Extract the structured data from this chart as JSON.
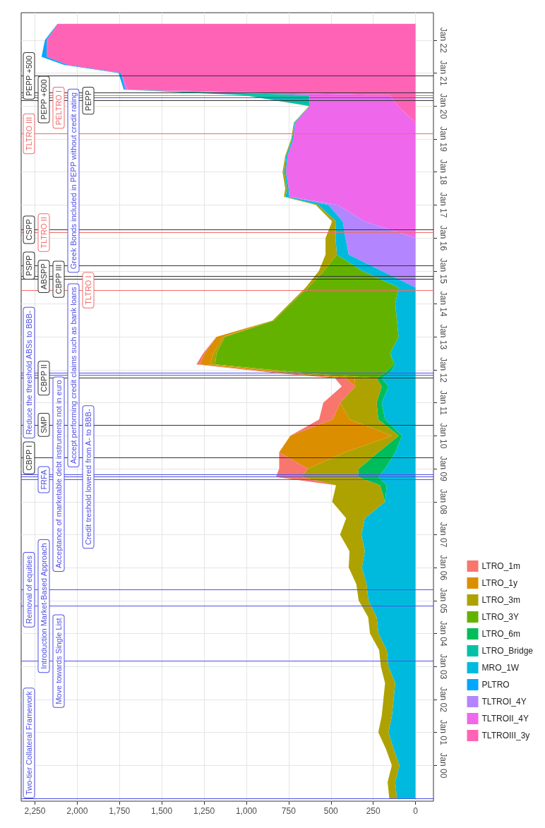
{
  "chart_data": {
    "type": "area",
    "stacked": true,
    "orientation": "horizontal",
    "grid": true,
    "legend": "bottom right",
    "x": [
      "1999-01",
      "1999-07",
      "2000-01",
      "2000-07",
      "2001-01",
      "2001-07",
      "2002-01",
      "2002-07",
      "2003-01",
      "2003-07",
      "2004-01",
      "2004-07",
      "2005-01",
      "2005-07",
      "2006-01",
      "2006-07",
      "2007-01",
      "2007-07",
      "2008-01",
      "2008-07",
      "2008-10",
      "2009-01",
      "2009-07",
      "2010-01",
      "2010-07",
      "2011-01",
      "2011-07",
      "2011-10",
      "2011-12",
      "2012-03",
      "2012-07",
      "2013-01",
      "2013-07",
      "2014-01",
      "2014-07",
      "2015-01",
      "2015-07",
      "2016-01",
      "2016-07",
      "2017-01",
      "2017-04",
      "2017-07",
      "2018-01",
      "2018-07",
      "2019-01",
      "2019-07",
      "2020-01",
      "2020-05",
      "2020-07",
      "2021-01",
      "2021-04",
      "2021-07",
      "2022-01",
      "2022-07"
    ],
    "xlim": [
      2331,
      -106
    ],
    "xticks": [
      0,
      250,
      500,
      750,
      {
        "value": 1000,
        "label": "1,000"
      },
      {
        "value": 1250,
        "label": "1,250"
      },
      {
        "value": 1500,
        "label": "1,500"
      },
      {
        "value": 1750,
        "label": "1,750"
      },
      {
        "value": 2000,
        "label": "2,000"
      },
      {
        "value": 2250,
        "label": "2,250"
      }
    ],
    "ylim": [
      "1998-12",
      "2022-11"
    ],
    "yticks": [
      {
        "value": "2000-01",
        "label": "Jan 00"
      },
      {
        "value": "2001-01",
        "label": "Jan 01"
      },
      {
        "value": "2002-01",
        "label": "Jan 02"
      },
      {
        "value": "2003-01",
        "label": "Jan 03"
      },
      {
        "value": "2004-01",
        "label": "Jan 04"
      },
      {
        "value": "2005-01",
        "label": "Jan 05"
      },
      {
        "value": "2006-01",
        "label": "Jan 06"
      },
      {
        "value": "2007-01",
        "label": "Jan 07"
      },
      {
        "value": "2008-01",
        "label": "Jan 08"
      },
      {
        "value": "2009-01",
        "label": "Jan 09"
      },
      {
        "value": "2010-01",
        "label": "Jan 10"
      },
      {
        "value": "2011-01",
        "label": "Jan 11"
      },
      {
        "value": "2012-01",
        "label": "Jan 12"
      },
      {
        "value": "2013-01",
        "label": "Jan 13"
      },
      {
        "value": "2014-01",
        "label": "Jan 14"
      },
      {
        "value": "2015-01",
        "label": "Jan 15"
      },
      {
        "value": "2016-01",
        "label": "Jan 16"
      },
      {
        "value": "2017-01",
        "label": "Jan 17"
      },
      {
        "value": "2018-01",
        "label": "Jan 18"
      },
      {
        "value": "2019-01",
        "label": "Jan 19"
      },
      {
        "value": "2020-01",
        "label": "Jan 20"
      },
      {
        "value": "2021-01",
        "label": "Jan 21"
      },
      {
        "value": "2022-01",
        "label": "Jan 22"
      }
    ],
    "series": [
      {
        "name": "TLTROIII_3y",
        "color": "#ff63b6",
        "values": [
          null,
          null,
          null,
          null,
          null,
          null,
          null,
          null,
          null,
          null,
          null,
          null,
          null,
          null,
          null,
          null,
          null,
          null,
          null,
          null,
          null,
          null,
          null,
          null,
          null,
          null,
          null,
          null,
          null,
          null,
          null,
          null,
          null,
          null,
          null,
          null,
          null,
          null,
          null,
          null,
          null,
          null,
          null,
          null,
          null,
          0,
          104,
          150,
          1700,
          1740,
          2056,
          2180,
          2180,
          2116
        ]
      },
      {
        "name": "TLTROII_4Y",
        "color": "#ef67eb",
        "values": [
          null,
          null,
          null,
          null,
          null,
          null,
          null,
          null,
          null,
          null,
          null,
          null,
          null,
          null,
          null,
          null,
          null,
          null,
          null,
          null,
          null,
          null,
          null,
          null,
          null,
          null,
          null,
          null,
          null,
          null,
          null,
          null,
          null,
          null,
          null,
          null,
          null,
          0,
          300,
          460,
          745,
          750,
          766,
          757,
          722,
          712,
          520,
          478,
          15,
          0,
          null,
          null,
          null,
          null
        ]
      },
      {
        "name": "TLTROI_4Y",
        "color": "#b385ff",
        "values": [
          null,
          null,
          null,
          null,
          null,
          null,
          null,
          null,
          null,
          null,
          null,
          null,
          null,
          null,
          null,
          null,
          null,
          null,
          null,
          null,
          null,
          null,
          null,
          null,
          null,
          null,
          null,
          null,
          null,
          null,
          null,
          null,
          null,
          null,
          0,
          200,
          395,
          414,
          130,
          55,
          3,
          0,
          null,
          null,
          null,
          null,
          null,
          null,
          null,
          null,
          null,
          null,
          null,
          null
        ]
      },
      {
        "name": "PLTRO",
        "color": "#00a6ff",
        "values": [
          null,
          null,
          null,
          null,
          null,
          null,
          null,
          null,
          null,
          null,
          null,
          null,
          null,
          null,
          null,
          null,
          null,
          null,
          null,
          null,
          null,
          null,
          null,
          null,
          null,
          null,
          null,
          null,
          null,
          null,
          null,
          null,
          null,
          null,
          null,
          null,
          null,
          null,
          null,
          null,
          null,
          null,
          null,
          null,
          null,
          null,
          null,
          0,
          8,
          15,
          20,
          30,
          10,
          0
        ]
      },
      {
        "name": "MRO_1W",
        "color": "#00bade",
        "values": [
          110,
          120,
          95,
          130,
          160,
          140,
          130,
          120,
          160,
          170,
          219,
          230,
          278,
          290,
          317,
          300,
          320,
          300,
          180,
          170,
          220,
          180,
          120,
          80,
          180,
          200,
          160,
          200,
          150,
          120,
          150,
          100,
          110,
          120,
          100,
          117,
          70,
          59,
          40,
          60,
          20,
          10,
          10,
          8,
          8,
          5,
          3,
          2,
          2,
          1,
          1,
          1,
          1,
          1
        ]
      },
      {
        "name": "LTRO_Bridge",
        "color": "#00c1a7",
        "values": [
          null,
          null,
          null,
          null,
          null,
          null,
          null,
          null,
          null,
          null,
          null,
          null,
          null,
          null,
          null,
          null,
          null,
          null,
          null,
          null,
          null,
          null,
          null,
          null,
          null,
          null,
          null,
          null,
          null,
          null,
          null,
          null,
          null,
          null,
          null,
          null,
          null,
          null,
          null,
          null,
          null,
          null,
          null,
          null,
          null,
          null,
          0,
          390,
          0,
          null,
          null,
          null,
          null,
          null
        ]
      },
      {
        "name": "LTRO_6m",
        "color": "#00bd5c",
        "values": [
          null,
          null,
          null,
          null,
          null,
          null,
          null,
          null,
          null,
          null,
          null,
          null,
          null,
          null,
          null,
          null,
          null,
          null,
          0,
          40,
          120,
          156,
          100,
          20,
          40,
          30,
          40,
          30,
          30,
          10,
          0,
          null,
          null,
          null,
          null,
          null,
          null,
          null,
          null,
          null,
          null,
          null,
          null,
          null,
          null,
          null,
          null,
          null,
          null,
          null,
          null,
          null,
          null,
          null
        ]
      },
      {
        "name": "LTRO_3Y",
        "color": "#64b200",
        "values": [
          null,
          null,
          null,
          null,
          null,
          null,
          null,
          null,
          null,
          null,
          null,
          null,
          null,
          null,
          null,
          null,
          null,
          null,
          null,
          null,
          null,
          null,
          null,
          null,
          null,
          null,
          null,
          0,
          489,
          1055,
          1026,
          1027,
          725,
          617,
          534,
          224,
          0,
          null,
          null,
          null,
          null,
          null,
          null,
          null,
          null,
          null,
          null,
          null,
          null,
          null,
          null,
          null,
          null,
          null
        ]
      },
      {
        "name": "LTRO_3m",
        "color": "#aea200",
        "values": [
          45,
          45,
          45,
          45,
          60,
          60,
          60,
          60,
          45,
          45,
          50,
          50,
          58,
          60,
          78,
          90,
          126,
          110,
          313,
          260,
          335,
          300,
          196,
          40,
          170,
          215,
          156,
          130,
          80,
          30,
          20,
          10,
          10,
          10,
          15,
          30,
          67,
          59,
          23,
          15,
          10,
          10,
          10,
          5,
          5,
          3,
          3,
          1,
          0,
          null,
          null,
          null,
          null,
          null
        ]
      },
      {
        "name": "LTRO_1y",
        "color": "#db8e00",
        "values": [
          null,
          null,
          null,
          null,
          null,
          null,
          null,
          null,
          null,
          null,
          null,
          null,
          null,
          null,
          null,
          null,
          null,
          null,
          null,
          null,
          null,
          0,
          390,
          600,
          100,
          0,
          0,
          56,
          56,
          60,
          50,
          40,
          0,
          null,
          null,
          null,
          null,
          null,
          null,
          null,
          null,
          null,
          null,
          null,
          null,
          null,
          null,
          null,
          null,
          null,
          null,
          null,
          null,
          null
        ]
      },
      {
        "name": "LTRO_1m",
        "color": "#f8766d",
        "values": [
          null,
          null,
          null,
          null,
          null,
          null,
          null,
          null,
          null,
          null,
          null,
          null,
          null,
          null,
          null,
          null,
          null,
          null,
          null,
          0,
          150,
          170,
          0,
          0,
          80,
          100,
          80,
          60,
          40,
          20,
          10,
          0,
          null,
          null,
          null,
          null,
          null,
          null,
          null,
          null,
          null,
          null,
          null,
          null,
          null,
          null,
          null,
          null,
          null,
          null,
          null,
          null,
          null,
          null
        ]
      }
    ],
    "ref_lines": [
      {
        "axis": "y",
        "value": "1999-01",
        "label": "Two-tier Collateral Framework",
        "color": "#4f4fe8"
      },
      {
        "axis": "y",
        "value": "2003-03",
        "label": "Move towards Single List",
        "color": "#4f4fe8"
      },
      {
        "axis": "y",
        "value": "2004-11",
        "label": "Introduction Market-Based Approach",
        "color": "#4f4fe8"
      },
      {
        "axis": "y",
        "value": "2005-05",
        "label": "Removal of equities",
        "color": "#4f4fe8"
      },
      {
        "axis": "y",
        "value": "2008-09",
        "label": "FRFA",
        "color": "#4f4fe8"
      },
      {
        "axis": "y",
        "value": "2008-10",
        "label": "Credit treshold lowered from A- to BBB-",
        "color": "#4f4fe8"
      },
      {
        "axis": "y",
        "value": "2008-11",
        "label": "Acceptance of marketable debt instruments not in euro",
        "color": "#4f4fe8"
      },
      {
        "axis": "y",
        "value": "2009-05",
        "label": "CBPP I",
        "color": "#333333"
      },
      {
        "axis": "y",
        "value": "2010-05",
        "label": "SMP",
        "color": "#333333"
      },
      {
        "axis": "y",
        "value": "2011-10",
        "label": "CBPP II",
        "color": "#333333"
      },
      {
        "axis": "y",
        "value": "2011-11",
        "label": "Accept performing credit claims such as bank loans",
        "color": "#4f4fe8"
      },
      {
        "axis": "y",
        "value": "2011-12",
        "label": "Reduce the threshold ABSs to BBB-",
        "color": "#4f4fe8"
      },
      {
        "axis": "y",
        "value": "2014-06",
        "label": "TLTRO I",
        "color": "#f06a6a"
      },
      {
        "axis": "y",
        "value": "2014-10",
        "label": "CBPP III",
        "color": "#333333"
      },
      {
        "axis": "y",
        "value": "2014-11",
        "label": "ABSPP",
        "color": "#333333"
      },
      {
        "axis": "y",
        "value": "2015-03",
        "label": "PSPP",
        "color": "#333333"
      },
      {
        "axis": "y",
        "value": "2016-03",
        "label": "TLTRO II",
        "color": "#f06a6a"
      },
      {
        "axis": "y",
        "value": "2016-04",
        "label": "CSPP",
        "color": "#333333"
      },
      {
        "axis": "y",
        "value": "2019-03",
        "label": "TLTRO III",
        "color": "#f06a6a"
      },
      {
        "axis": "y",
        "value": "2020-03",
        "label": "PEPP",
        "color": "#333333"
      },
      {
        "axis": "y",
        "value": "2020-04",
        "label": "Greek Bonds included in PEPP without credit rating",
        "color": "#4f4fe8"
      },
      {
        "axis": "y",
        "value": "2020-05",
        "label": "PELTRO I",
        "color": "#f06a6a"
      },
      {
        "axis": "y",
        "value": "2020-06",
        "label": "PEPP +600",
        "color": "#333333"
      },
      {
        "axis": "y",
        "value": "2020-12",
        "label": "PEPP +500",
        "color": "#333333"
      }
    ]
  }
}
